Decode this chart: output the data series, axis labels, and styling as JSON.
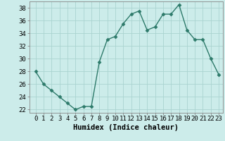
{
  "x": [
    0,
    1,
    2,
    3,
    4,
    5,
    6,
    7,
    8,
    9,
    10,
    11,
    12,
    13,
    14,
    15,
    16,
    17,
    18,
    19,
    20,
    21,
    22,
    23
  ],
  "y": [
    28,
    26,
    25,
    24,
    23,
    22,
    22.5,
    22.5,
    29.5,
    33,
    33.5,
    35.5,
    37,
    37.5,
    34.5,
    35,
    37,
    37,
    38.5,
    34.5,
    33,
    33,
    30,
    27.5
  ],
  "line_color": "#2d7a6a",
  "marker": "D",
  "marker_size": 2.5,
  "bg_color": "#ccecea",
  "grid_color": "#aad4d0",
  "xlabel": "Humidex (Indice chaleur)",
  "xlabel_fontsize": 7.5,
  "tick_fontsize": 6.5,
  "ylim": [
    21.5,
    39.0
  ],
  "yticks": [
    22,
    24,
    26,
    28,
    30,
    32,
    34,
    36,
    38
  ],
  "xticks": [
    0,
    1,
    2,
    3,
    4,
    5,
    6,
    7,
    8,
    9,
    10,
    11,
    12,
    13,
    14,
    15,
    16,
    17,
    18,
    19,
    20,
    21,
    22,
    23
  ],
  "linewidth": 1.0,
  "spine_color": "#888888"
}
